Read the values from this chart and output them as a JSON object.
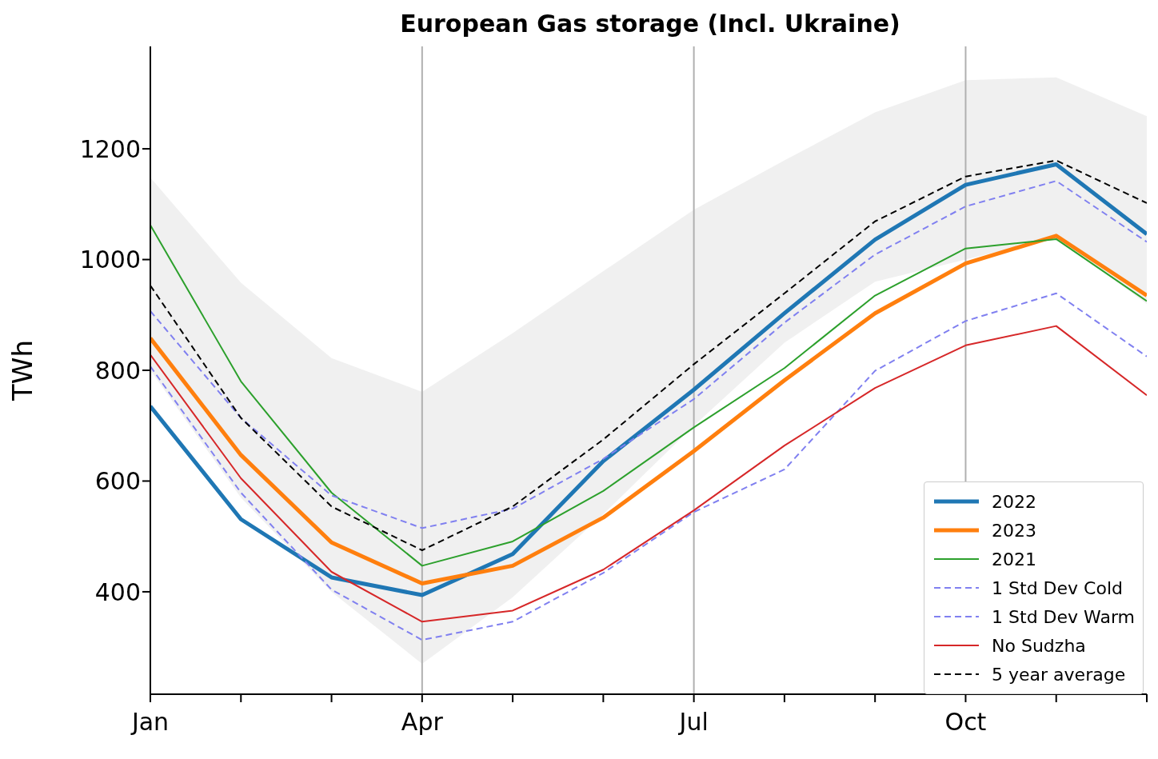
{
  "chart_data": {
    "type": "line",
    "title": "European Gas storage (Incl. Ukraine)",
    "ylabel": "TWh",
    "categories": [
      "Jan",
      null,
      null,
      "Apr",
      null,
      null,
      "Jul",
      null,
      null,
      "Oct",
      null,
      null
    ],
    "ylim": [
      215,
      1385
    ],
    "yticks": [
      400,
      600,
      800,
      1000,
      1200
    ],
    "grid": "x",
    "legend": "bottom right",
    "marker": "none",
    "series": [
      {
        "name": "2022",
        "color": "#1f77b4",
        "values": [
          735,
          531,
          426,
          394,
          468,
          636,
          765,
          903,
          1036,
          1135,
          1172,
          1046
        ]
      },
      {
        "name": "2023",
        "color": "#ff7f0e",
        "values": [
          858,
          647,
          489,
          415,
          447,
          534,
          654,
          782,
          903,
          993,
          1043,
          935
        ]
      },
      {
        "name": "2021",
        "color": "#2ca02c",
        "values": [
          1062,
          780,
          579,
          447,
          491,
          582,
          697,
          804,
          935,
          1020,
          1037,
          925
        ]
      },
      {
        "name": "1 Std Dev Cold",
        "color": "#8080f0",
        "line_style": "dashed",
        "values": [
          907,
          714,
          574,
          515,
          550,
          640,
          748,
          886,
          1009,
          1096,
          1142,
          1032
        ]
      },
      {
        "name": "1 Std Dev Warm",
        "color": "#8080f0",
        "line_style": "dashed",
        "values": [
          807,
          579,
          404,
          313,
          346,
          434,
          544,
          621,
          799,
          889,
          939,
          825
        ]
      },
      {
        "name": "No Sudzha",
        "color": "#d62728",
        "values": [
          828,
          605,
          436,
          346,
          366,
          440,
          547,
          664,
          768,
          845,
          880,
          755
        ]
      },
      {
        "name": "5 year average",
        "color": "#000000",
        "line_style": "dashed",
        "values": [
          953,
          714,
          554,
          475,
          554,
          675,
          811,
          939,
          1069,
          1150,
          1179,
          1102
        ],
        "lower": [
          800,
          570,
          400,
          270,
          390,
          540,
          700,
          850,
          960,
          1000,
          1040,
          920
        ],
        "upper": [
          1148,
          958,
          822,
          761,
          867,
          979,
          1090,
          1179,
          1266,
          1324,
          1329,
          1259
        ]
      }
    ]
  }
}
